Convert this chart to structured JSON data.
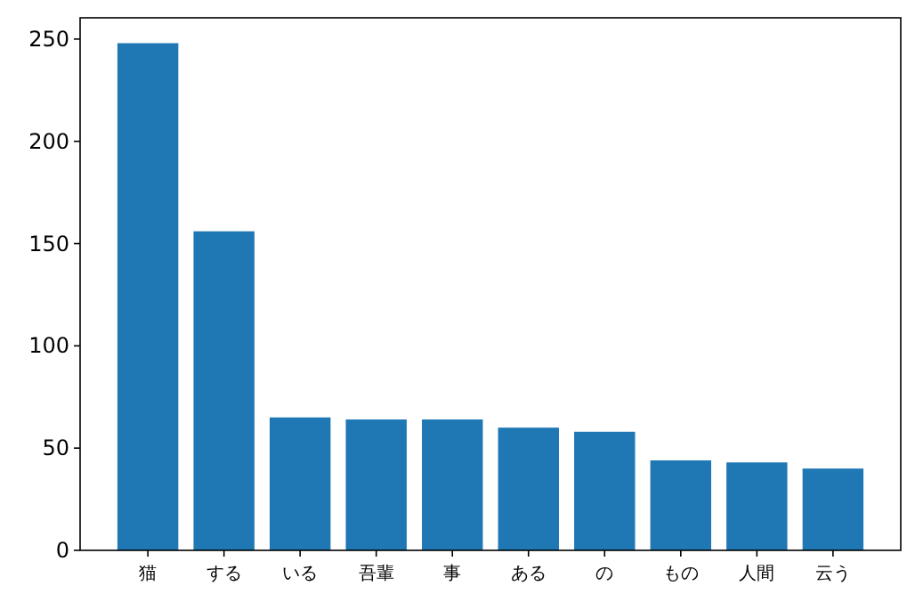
{
  "chart_data": {
    "type": "bar",
    "categories": [
      "猫",
      "する",
      "いる",
      "吾輩",
      "事",
      "ある",
      "の",
      "もの",
      "人間",
      "云う"
    ],
    "values": [
      248,
      156,
      65,
      64,
      64,
      60,
      58,
      44,
      43,
      40
    ],
    "color": "#1f77b4",
    "ylim": [
      0,
      260.4
    ],
    "yticks": [
      0,
      50,
      100,
      150,
      200,
      250
    ],
    "grid": false
  }
}
